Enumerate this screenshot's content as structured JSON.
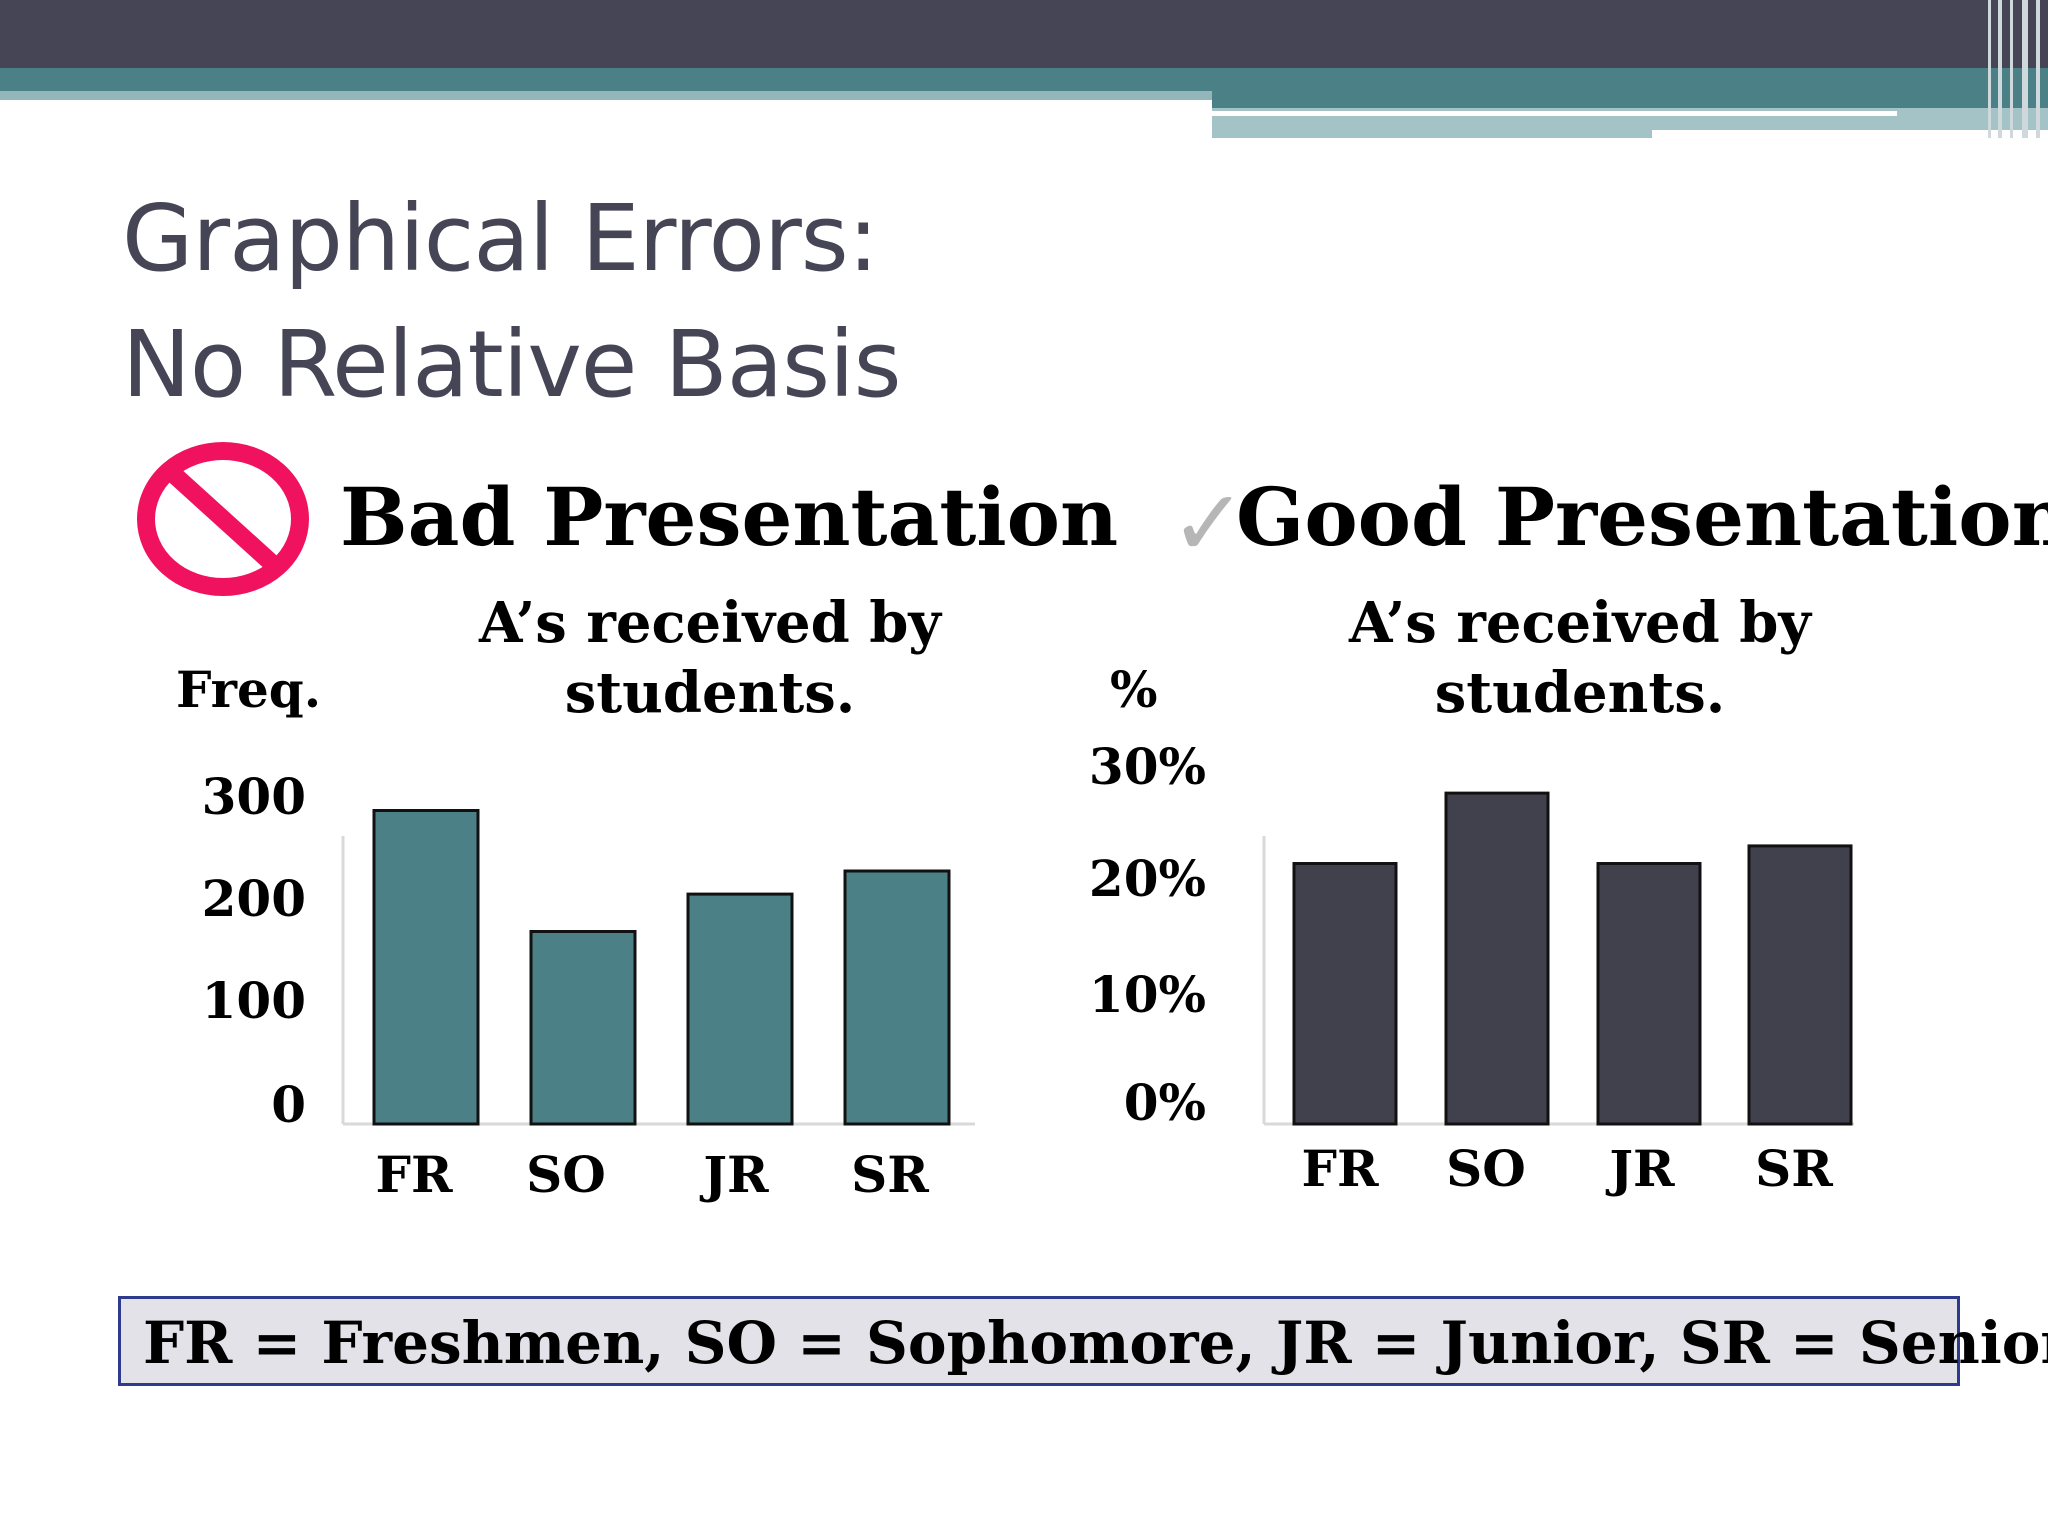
{
  "slide": {
    "title_line1": "Graphical Errors:",
    "title_line2": "No Relative Basis",
    "bad_heading": "Bad Presentation",
    "good_heading": "Good Presentation",
    "check_mark": "✓",
    "legend": "FR = Freshmen,  SO = Sophomore,  JR = Junior,  SR = Senior",
    "colors": {
      "header": "#454555",
      "accent": "#4b8086",
      "bad_icon": "#f0125e"
    },
    "icons": {
      "bad": "prohibition-icon",
      "good": "check-mark-icon"
    }
  },
  "chart_data": [
    {
      "type": "bar",
      "title_line1": "A’s received by",
      "title_line2": "students.",
      "ylabel": "Freq.",
      "categories": [
        "FR",
        "SO",
        "JR",
        "SR"
      ],
      "values": [
        285,
        175,
        209,
        230
      ],
      "ylim": [
        0,
        300
      ],
      "yticks": [
        0,
        100,
        200,
        300
      ],
      "ytick_labels": [
        "0",
        "100",
        "200",
        "300"
      ],
      "color": "#4b8086"
    },
    {
      "type": "bar",
      "title_line1": "A’s received by",
      "title_line2": "students.",
      "ylabel": "%",
      "categories": [
        "FR",
        "SO",
        "JR",
        "SR"
      ],
      "values": [
        22.2,
        28.2,
        22.2,
        23.7
      ],
      "ylim": [
        0,
        30
      ],
      "yticks": [
        0,
        10,
        20,
        30
      ],
      "ytick_labels": [
        "0%",
        "10%",
        "20%",
        "30%"
      ],
      "color": "#41414e"
    }
  ]
}
